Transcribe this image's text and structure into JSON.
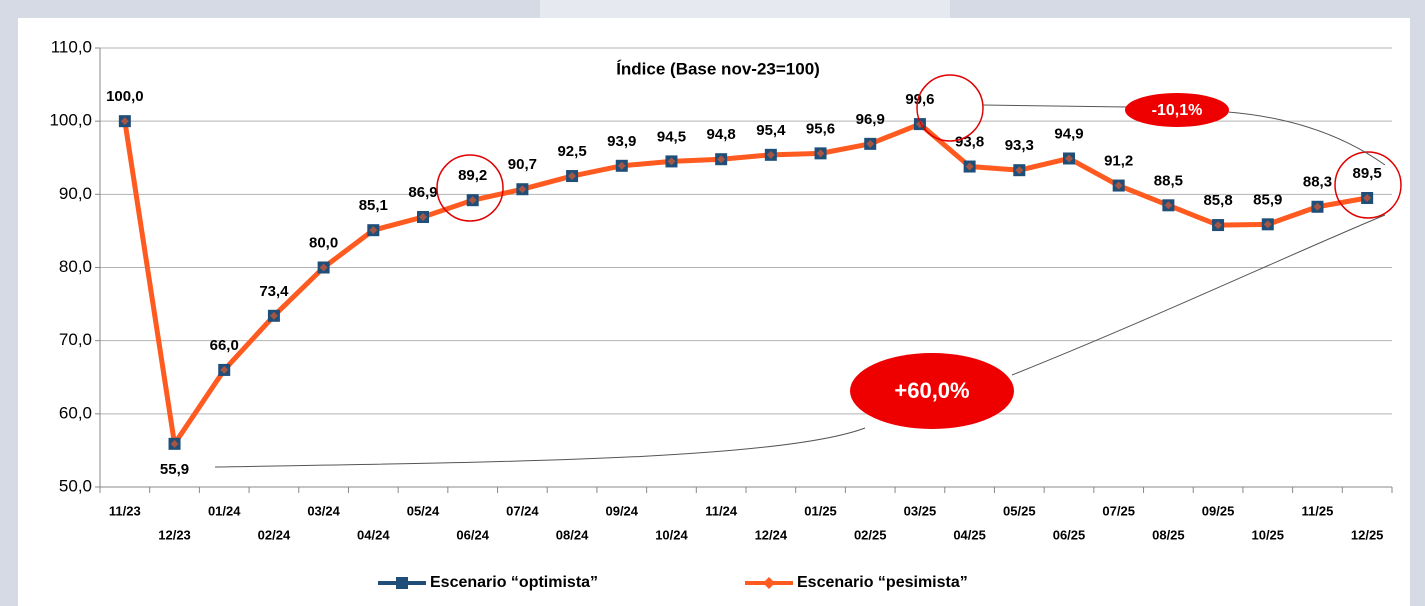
{
  "chart_data": {
    "type": "line",
    "title": "Índice (Base nov-23=100)",
    "categories": [
      "11/23",
      "12/23",
      "01/24",
      "02/24",
      "03/24",
      "04/24",
      "05/24",
      "06/24",
      "07/24",
      "08/24",
      "09/24",
      "10/24",
      "11/24",
      "12/24",
      "01/25",
      "02/25",
      "03/25",
      "04/25",
      "05/25",
      "06/25",
      "07/25",
      "08/25",
      "09/25",
      "10/25",
      "11/25",
      "12/25"
    ],
    "series": [
      {
        "name": "Escenario “optimista”",
        "color": "#1f4e79",
        "values": [
          100.0,
          55.9,
          66.0,
          73.4,
          80.0,
          85.1,
          86.9,
          89.2,
          90.7,
          92.5,
          93.9,
          94.5,
          94.8,
          95.4,
          95.6,
          96.9,
          99.6,
          93.8,
          93.3,
          94.9,
          91.2,
          88.5,
          85.8,
          85.9,
          88.3,
          89.5
        ]
      },
      {
        "name": "Escenario “pesimista”",
        "color": "#ff5a1f",
        "values": [
          100.0,
          55.9,
          66.0,
          73.4,
          80.0,
          85.1,
          86.9,
          89.2,
          90.7,
          92.5,
          93.9,
          94.5,
          94.8,
          95.4,
          95.6,
          96.9,
          99.6,
          93.8,
          93.3,
          94.9,
          91.2,
          88.5,
          85.8,
          85.9,
          88.3,
          89.5
        ],
        "value_labels": [
          "100,0",
          "55,9",
          "66,0",
          "73,4",
          "80,0",
          "85,1",
          "86,9",
          "89,2",
          "90,7",
          "92,5",
          "93,9",
          "94,5",
          "94,8",
          "95,4",
          "95,6",
          "96,9",
          "99,6",
          "93,8",
          "93,3",
          "94,9",
          "91,2",
          "88,5",
          "85,8",
          "85,9",
          "88,3",
          "89,5"
        ]
      }
    ],
    "ylim": [
      50,
      110
    ],
    "yticks": [
      {
        "value": 50,
        "label": "50,0"
      },
      {
        "value": 60,
        "label": "60,0"
      },
      {
        "value": 70,
        "label": "70,0"
      },
      {
        "value": 80,
        "label": "80,0"
      },
      {
        "value": 90,
        "label": "90,0"
      },
      {
        "value": 100,
        "label": "100,0"
      },
      {
        "value": 110,
        "label": "110,0"
      }
    ],
    "annotations": [
      "-10,1%",
      "+60,0%"
    ],
    "grid": true,
    "legend": "bottom"
  }
}
